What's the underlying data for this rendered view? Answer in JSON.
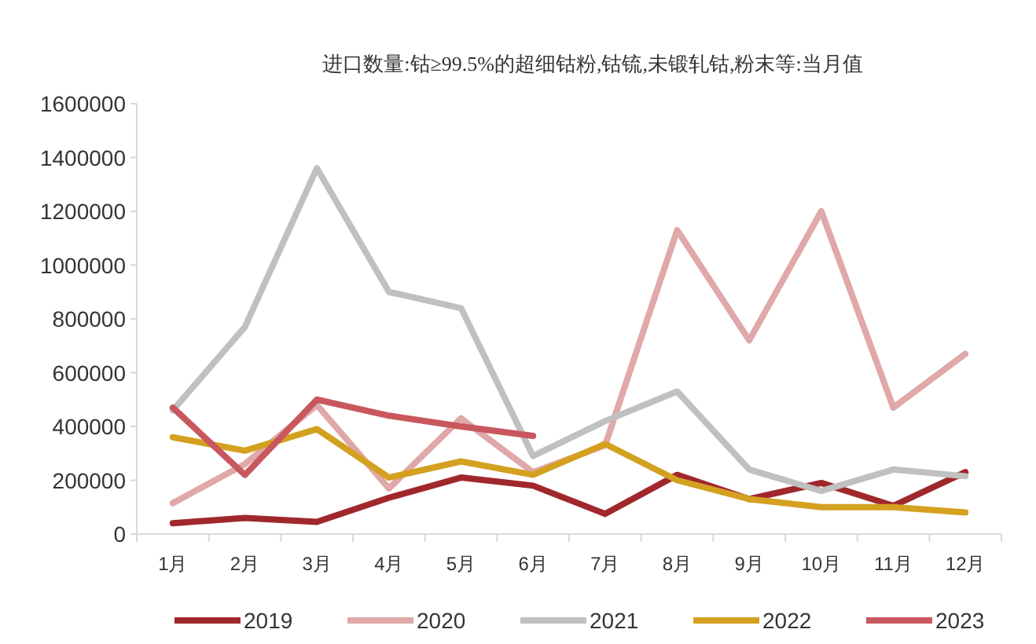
{
  "chart_data": {
    "type": "line",
    "title": "进口数量:钴≥99.5%的超细钴粉,钴锍,未锻轧钴,粉末等:当月值",
    "categories": [
      "1月",
      "2月",
      "3月",
      "4月",
      "5月",
      "6月",
      "7月",
      "8月",
      "9月",
      "10月",
      "11月",
      "12月"
    ],
    "series": [
      {
        "name": "2019",
        "color": "#a0282d",
        "values": [
          40000,
          60000,
          45000,
          135000,
          210000,
          180000,
          75000,
          220000,
          130000,
          190000,
          105000,
          230000
        ]
      },
      {
        "name": "2020",
        "color": "#e0a8a8",
        "values": [
          115000,
          260000,
          480000,
          170000,
          430000,
          230000,
          330000,
          1130000,
          720000,
          1200000,
          470000,
          670000
        ]
      },
      {
        "name": "2021",
        "color": "#c0c0c0",
        "values": [
          460000,
          770000,
          1360000,
          900000,
          840000,
          290000,
          420000,
          530000,
          240000,
          160000,
          240000,
          215000
        ]
      },
      {
        "name": "2022",
        "color": "#d4a020",
        "values": [
          360000,
          310000,
          390000,
          210000,
          270000,
          220000,
          335000,
          200000,
          130000,
          100000,
          100000,
          80000
        ]
      },
      {
        "name": "2023",
        "color": "#c8585e",
        "values": [
          470000,
          220000,
          500000,
          440000,
          400000,
          365000,
          null,
          null,
          null,
          null,
          null,
          null
        ]
      }
    ],
    "ylim": [
      0,
      1600000
    ],
    "yticks": [
      0,
      200000,
      400000,
      600000,
      800000,
      1000000,
      1200000,
      1400000,
      1600000
    ],
    "grid": false,
    "legend": "bottom"
  }
}
